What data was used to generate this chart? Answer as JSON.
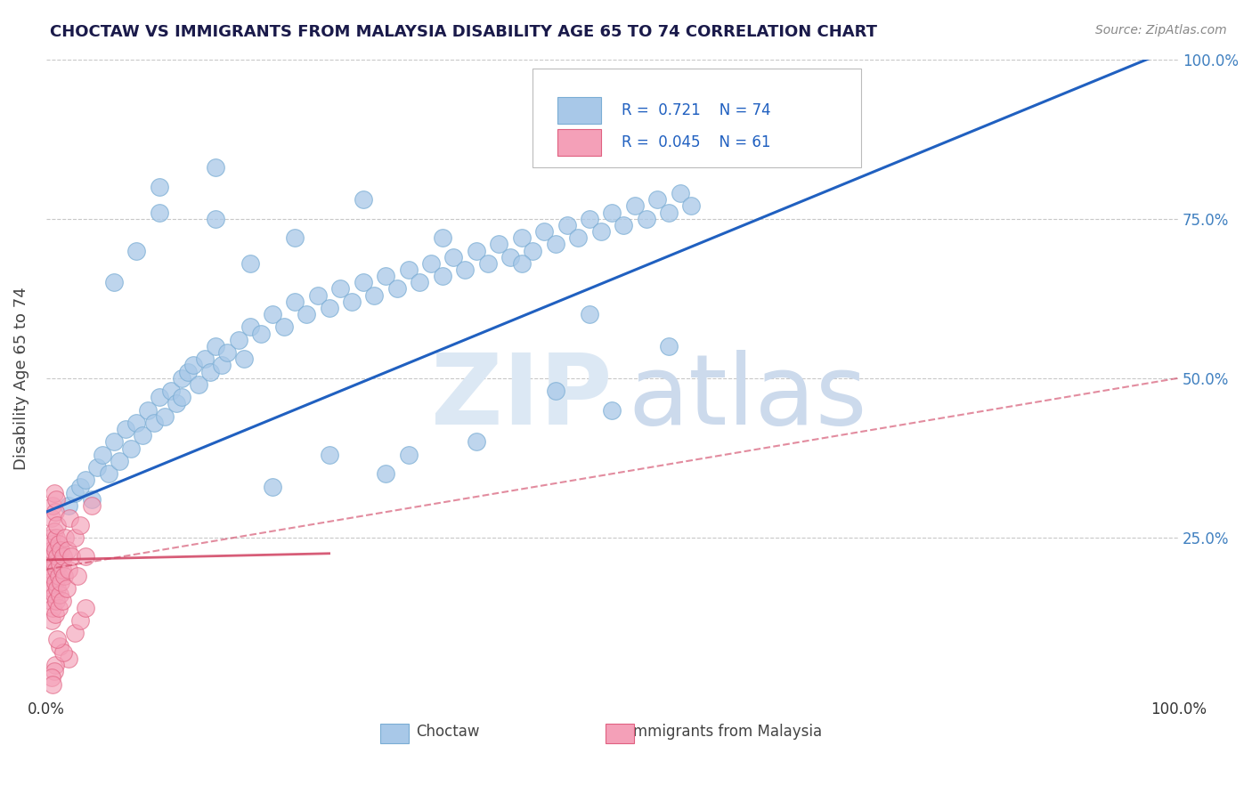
{
  "title": "CHOCTAW VS IMMIGRANTS FROM MALAYSIA DISABILITY AGE 65 TO 74 CORRELATION CHART",
  "source": "Source: ZipAtlas.com",
  "ylabel": "Disability Age 65 to 74",
  "xlim": [
    0,
    1.0
  ],
  "ylim": [
    0,
    1.0
  ],
  "ytick_values": [
    0.25,
    0.5,
    0.75,
    1.0
  ],
  "choctaw_color": "#a8c8e8",
  "choctaw_edge": "#7aadd4",
  "malaysia_color": "#f4a0b8",
  "malaysia_edge": "#e06080",
  "line1_color": "#2060c0",
  "line2_color": "#d04060",
  "line2_dash_color": "#e08898",
  "grid_color": "#c8c8c8",
  "background_color": "#ffffff",
  "title_color": "#1a1a4a",
  "right_tick_color": "#4080c0",
  "choctaw_x": [
    0.02,
    0.025,
    0.03,
    0.035,
    0.04,
    0.045,
    0.05,
    0.055,
    0.06,
    0.065,
    0.07,
    0.075,
    0.08,
    0.085,
    0.09,
    0.095,
    0.1,
    0.105,
    0.11,
    0.115,
    0.12,
    0.12,
    0.125,
    0.13,
    0.135,
    0.14,
    0.145,
    0.15,
    0.155,
    0.16,
    0.17,
    0.175,
    0.18,
    0.19,
    0.2,
    0.21,
    0.22,
    0.23,
    0.24,
    0.25,
    0.26,
    0.27,
    0.28,
    0.29,
    0.3,
    0.31,
    0.32,
    0.33,
    0.34,
    0.35,
    0.36,
    0.37,
    0.38,
    0.39,
    0.4,
    0.41,
    0.42,
    0.43,
    0.44,
    0.45,
    0.46,
    0.47,
    0.48,
    0.49,
    0.5,
    0.51,
    0.52,
    0.53,
    0.54,
    0.55,
    0.56,
    0.57,
    0.1,
    0.15
  ],
  "choctaw_y": [
    0.3,
    0.32,
    0.33,
    0.34,
    0.31,
    0.36,
    0.38,
    0.35,
    0.4,
    0.37,
    0.42,
    0.39,
    0.43,
    0.41,
    0.45,
    0.43,
    0.47,
    0.44,
    0.48,
    0.46,
    0.5,
    0.47,
    0.51,
    0.52,
    0.49,
    0.53,
    0.51,
    0.55,
    0.52,
    0.54,
    0.56,
    0.53,
    0.58,
    0.57,
    0.6,
    0.58,
    0.62,
    0.6,
    0.63,
    0.61,
    0.64,
    0.62,
    0.65,
    0.63,
    0.66,
    0.64,
    0.67,
    0.65,
    0.68,
    0.66,
    0.69,
    0.67,
    0.7,
    0.68,
    0.71,
    0.69,
    0.72,
    0.7,
    0.73,
    0.71,
    0.74,
    0.72,
    0.75,
    0.73,
    0.76,
    0.74,
    0.77,
    0.75,
    0.78,
    0.76,
    0.79,
    0.77,
    0.76,
    0.83
  ],
  "choctaw_outliers_x": [
    0.06,
    0.08,
    0.1,
    0.15,
    0.18,
    0.22,
    0.28,
    0.35,
    0.42,
    0.48,
    0.55,
    0.45,
    0.5,
    0.38,
    0.3,
    0.25,
    0.2,
    0.32
  ],
  "choctaw_outliers_y": [
    0.65,
    0.7,
    0.8,
    0.75,
    0.68,
    0.72,
    0.78,
    0.72,
    0.68,
    0.6,
    0.55,
    0.48,
    0.45,
    0.4,
    0.35,
    0.38,
    0.33,
    0.38
  ],
  "malaysia_x": [
    0.003,
    0.003,
    0.004,
    0.004,
    0.004,
    0.005,
    0.005,
    0.005,
    0.005,
    0.006,
    0.006,
    0.006,
    0.006,
    0.007,
    0.007,
    0.007,
    0.007,
    0.008,
    0.008,
    0.008,
    0.008,
    0.009,
    0.009,
    0.009,
    0.009,
    0.01,
    0.01,
    0.01,
    0.011,
    0.011,
    0.011,
    0.012,
    0.012,
    0.013,
    0.013,
    0.014,
    0.014,
    0.015,
    0.016,
    0.017,
    0.018,
    0.019,
    0.02,
    0.021,
    0.022,
    0.025,
    0.028,
    0.03,
    0.035,
    0.04,
    0.025,
    0.03,
    0.012,
    0.035,
    0.02,
    0.008,
    0.015,
    0.01,
    0.007,
    0.005,
    0.006
  ],
  "malaysia_y": [
    0.18,
    0.22,
    0.15,
    0.2,
    0.25,
    0.12,
    0.17,
    0.23,
    0.28,
    0.14,
    0.19,
    0.24,
    0.3,
    0.16,
    0.21,
    0.26,
    0.32,
    0.13,
    0.18,
    0.23,
    0.29,
    0.15,
    0.2,
    0.25,
    0.31,
    0.17,
    0.22,
    0.27,
    0.14,
    0.19,
    0.24,
    0.16,
    0.21,
    0.18,
    0.23,
    0.15,
    0.2,
    0.22,
    0.19,
    0.25,
    0.17,
    0.23,
    0.2,
    0.28,
    0.22,
    0.25,
    0.19,
    0.27,
    0.22,
    0.3,
    0.1,
    0.12,
    0.08,
    0.14,
    0.06,
    0.05,
    0.07,
    0.09,
    0.04,
    0.03,
    0.02
  ],
  "line1_x0": 0.0,
  "line1_y0": 0.29,
  "line1_x1": 1.0,
  "line1_y1": 1.02,
  "line2_x0": 0.0,
  "line2_y0": 0.2,
  "line2_x1": 1.0,
  "line2_y1": 0.5
}
